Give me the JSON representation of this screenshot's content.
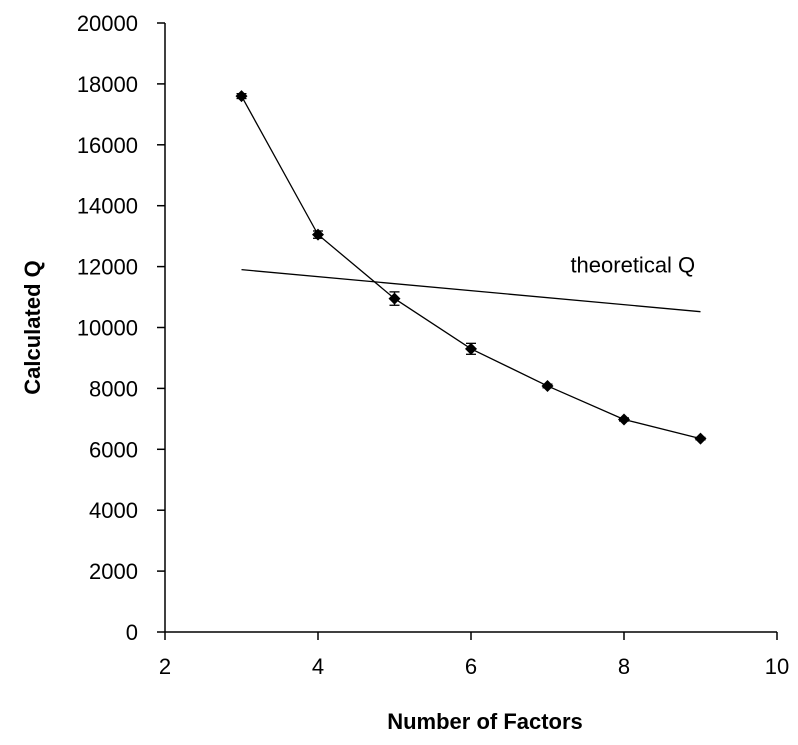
{
  "chart_data": {
    "type": "line",
    "title": "",
    "xlabel": "Number of Factors",
    "ylabel": "Calculated Q",
    "xlim": [
      2,
      10
    ],
    "ylim": [
      0,
      20000
    ],
    "x_ticks": [
      2,
      4,
      6,
      8,
      10
    ],
    "y_ticks": [
      0,
      2000,
      4000,
      6000,
      8000,
      10000,
      12000,
      14000,
      16000,
      18000,
      20000
    ],
    "grid": false,
    "legend": "none",
    "series": [
      {
        "marker": "diamond",
        "color": "#000000",
        "x": [
          3,
          4,
          5,
          6,
          7,
          8,
          9
        ],
        "y": [
          17600,
          13050,
          10950,
          9300,
          8080,
          6980,
          6350
        ],
        "error": [
          80,
          120,
          220,
          180,
          60,
          50,
          40
        ]
      },
      {
        "marker": "none",
        "color": "#000000",
        "x": [
          3,
          9
        ],
        "y": [
          11900,
          10520
        ]
      }
    ],
    "annotations": [
      {
        "text": "theoretical Q",
        "x": 7.3,
        "y": 11800
      }
    ]
  }
}
